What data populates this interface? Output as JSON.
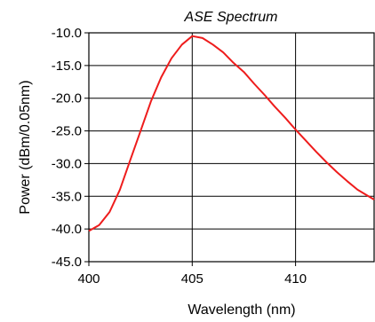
{
  "chart_data": {
    "type": "line",
    "title": "ASE Spectrum",
    "xlabel": "Wavelength (nm)",
    "ylabel": "Power (dBm/0.05nm)",
    "xlim": [
      400,
      413.8
    ],
    "ylim": [
      -45,
      -10
    ],
    "x_ticks": [
      400,
      405,
      410
    ],
    "x_tick_labels": [
      "400",
      "405",
      "410"
    ],
    "y_ticks": [
      -10,
      -15,
      -20,
      -25,
      -30,
      -35,
      -40,
      -45
    ],
    "y_tick_labels": [
      "-10.0",
      "-15.0",
      "-20.0",
      "-25.0",
      "-30.0",
      "-35.0",
      "-40.0",
      "-45.0"
    ],
    "grid": true,
    "legend": "none",
    "series": [
      {
        "color": "#ee1c1c",
        "points": [
          [
            400.0,
            -40.3
          ],
          [
            400.5,
            -39.4
          ],
          [
            401.0,
            -37.4
          ],
          [
            401.5,
            -34.0
          ],
          [
            402.0,
            -29.5
          ],
          [
            402.5,
            -25.0
          ],
          [
            403.0,
            -20.5
          ],
          [
            403.5,
            -16.8
          ],
          [
            404.0,
            -13.9
          ],
          [
            404.5,
            -11.8
          ],
          [
            405.0,
            -10.5
          ],
          [
            405.5,
            -10.8
          ],
          [
            406.0,
            -11.8
          ],
          [
            406.5,
            -13.0
          ],
          [
            407.0,
            -14.6
          ],
          [
            407.5,
            -16.0
          ],
          [
            408.0,
            -17.8
          ],
          [
            408.5,
            -19.5
          ],
          [
            409.0,
            -21.3
          ],
          [
            409.5,
            -23.0
          ],
          [
            410.0,
            -24.8
          ],
          [
            410.5,
            -26.5
          ],
          [
            411.0,
            -28.2
          ],
          [
            411.5,
            -29.8
          ],
          [
            412.0,
            -31.3
          ],
          [
            412.5,
            -32.7
          ],
          [
            413.0,
            -34.0
          ],
          [
            413.8,
            -35.5
          ]
        ]
      }
    ]
  }
}
